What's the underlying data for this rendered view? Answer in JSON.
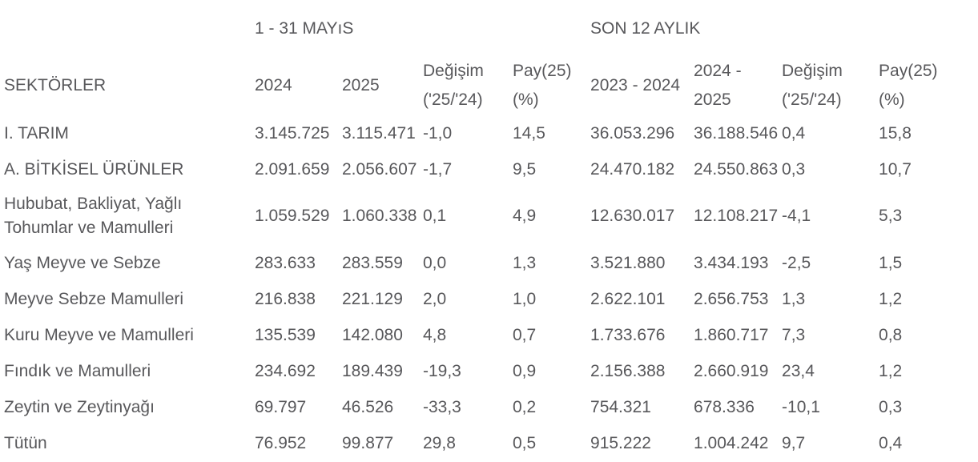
{
  "page": {
    "background": "#ffffff",
    "text_color": "#58585b"
  },
  "chart_data": {
    "type": "table",
    "group_headers": [
      {
        "label": "1 - 31 MAYıS",
        "span": 4
      },
      {
        "label": "SON 12 AYLIK",
        "span": 4
      }
    ],
    "columns": [
      {
        "key": "sector",
        "line1": "SEKTÖRLER",
        "line2": ""
      },
      {
        "key": "may-2024",
        "line1": "2024",
        "line2": ""
      },
      {
        "key": "may-2025",
        "line1": "2025",
        "line2": ""
      },
      {
        "key": "may-change",
        "line1": "Değişim",
        "line2": "('25/'24)"
      },
      {
        "key": "may-share",
        "line1": "Pay(25)",
        "line2": "(%)"
      },
      {
        "key": "last12-2023-2024",
        "line1": "2023 - 2024",
        "line2": ""
      },
      {
        "key": "last12-2024-2025",
        "line1": "2024 -",
        "line2": "2025"
      },
      {
        "key": "last12-change",
        "line1": "Değişim",
        "line2": "('25/'24)"
      },
      {
        "key": "last12-share",
        "line1": "Pay(25)",
        "line2": "(%)"
      }
    ],
    "rows": [
      [
        "I. TARIM",
        "3.145.725",
        "3.115.471",
        "-1,0",
        "14,5",
        "36.053.296",
        "36.188.546",
        "0,4",
        "15,8"
      ],
      [
        "A. BİTKİSEL ÜRÜNLER",
        "2.091.659",
        "2.056.607",
        "-1,7",
        "9,5",
        "24.470.182",
        "24.550.863",
        "0,3",
        "10,7"
      ],
      [
        "Hububat, Bakliyat, Yağlı Tohumlar ve Mamulleri",
        "1.059.529",
        "1.060.338",
        "0,1",
        "4,9",
        "12.630.017",
        "12.108.217",
        "-4,1",
        "5,3"
      ],
      [
        "Yaş Meyve ve Sebze",
        "283.633",
        "283.559",
        "0,0",
        "1,3",
        "3.521.880",
        "3.434.193",
        "-2,5",
        "1,5"
      ],
      [
        "Meyve Sebze Mamulleri",
        "216.838",
        "221.129",
        "2,0",
        "1,0",
        "2.622.101",
        "2.656.753",
        "1,3",
        "1,2"
      ],
      [
        "Kuru Meyve ve Mamulleri",
        "135.539",
        "142.080",
        "4,8",
        "0,7",
        "1.733.676",
        "1.860.717",
        "7,3",
        "0,8"
      ],
      [
        "Fındık ve Mamulleri",
        "234.692",
        "189.439",
        "-19,3",
        "0,9",
        "2.156.388",
        "2.660.919",
        "23,4",
        "1,2"
      ],
      [
        "Zeytin ve Zeytinyağı",
        "69.797",
        "46.526",
        "-33,3",
        "0,2",
        "754.321",
        "678.336",
        "-10,1",
        "0,3"
      ],
      [
        "Tütün",
        "76.952",
        "99.877",
        "29,8",
        "0,5",
        "915.222",
        "1.004.242",
        "9,7",
        "0,4"
      ]
    ]
  }
}
